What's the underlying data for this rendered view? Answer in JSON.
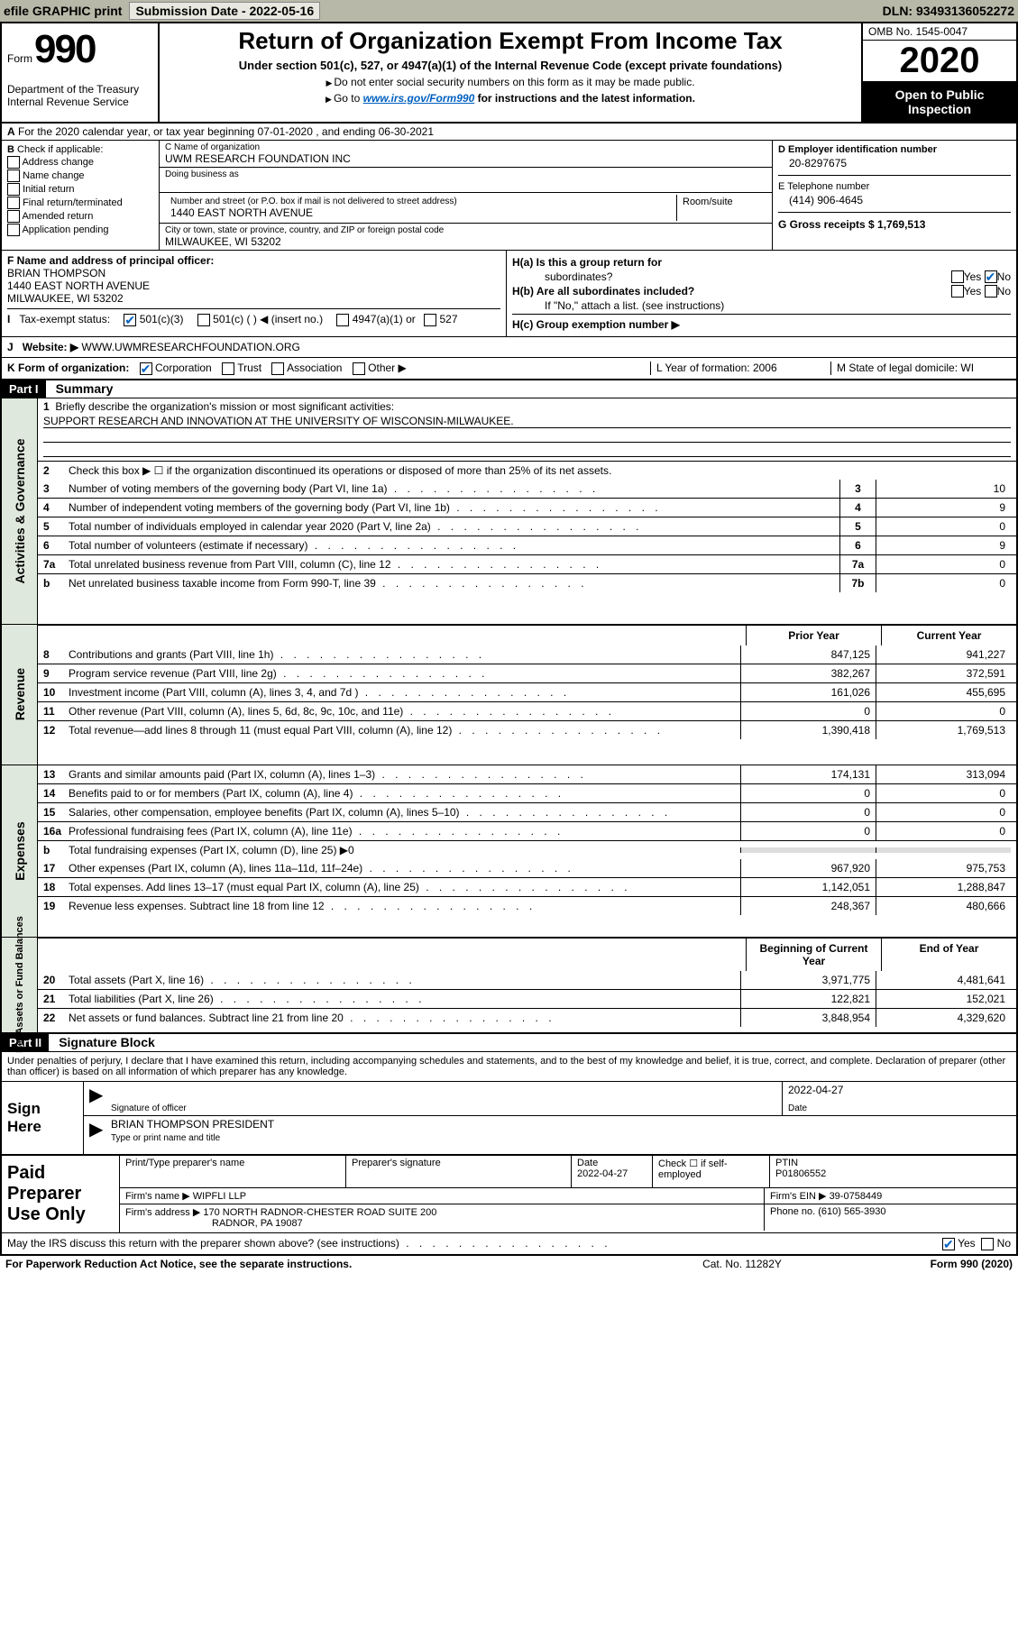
{
  "topbar": {
    "efile": "efile GRAPHIC print",
    "submission_label": "Submission Date - 2022-05-16",
    "dln": "DLN: 93493136052272"
  },
  "header": {
    "form_word": "Form",
    "form_num": "990",
    "dept": "Department of the Treasury",
    "irs": "Internal Revenue Service",
    "title": "Return of Organization Exempt From Income Tax",
    "subtitle": "Under section 501(c), 527, or 4947(a)(1) of the Internal Revenue Code (except private foundations)",
    "note1": "Do not enter social security numbers on this form as it may be made public.",
    "note2_pre": "Go to ",
    "note2_link": "www.irs.gov/Form990",
    "note2_post": " for instructions and the latest information.",
    "omb": "OMB No. 1545-0047",
    "year": "2020",
    "inspect1": "Open to Public",
    "inspect2": "Inspection"
  },
  "row_a": "For the 2020 calendar year, or tax year beginning 07-01-2020    , and ending 06-30-2021",
  "section_b": {
    "label": "Check if applicable:",
    "opts": [
      "Address change",
      "Name change",
      "Initial return",
      "Final return/terminated",
      "Amended return",
      "Application pending"
    ]
  },
  "section_c": {
    "name_label": "C Name of organization",
    "name": "UWM RESEARCH FOUNDATION INC",
    "dba_label": "Doing business as",
    "dba": "",
    "street_label": "Number and street (or P.O. box if mail is not delivered to street address)",
    "room_label": "Room/suite",
    "street": "1440 EAST NORTH AVENUE",
    "city_label": "City or town, state or province, country, and ZIP or foreign postal code",
    "city": "MILWAUKEE, WI  53202"
  },
  "section_d": {
    "label": "D Employer identification number",
    "value": "20-8297675"
  },
  "section_e": {
    "label": "E Telephone number",
    "value": "(414) 906-4645"
  },
  "section_g": {
    "label": "G Gross receipts $ 1,769,513"
  },
  "section_f": {
    "label": "F  Name and address of principal officer:",
    "name": "BRIAN THOMPSON",
    "addr1": "1440 EAST NORTH AVENUE",
    "addr2": "MILWAUKEE, WI  53202"
  },
  "section_h": {
    "a": "H(a)  Is this a group return for",
    "a2": "subordinates?",
    "b": "H(b)  Are all subordinates included?",
    "b2": "If \"No,\" attach a list. (see instructions)",
    "c": "H(c)  Group exemption number ▶",
    "yes": "Yes",
    "no": "No"
  },
  "row_i": {
    "label": "Tax-exempt status:",
    "o1": "501(c)(3)",
    "o2": "501(c) (  ) ◀ (insert no.)",
    "o3": "4947(a)(1) or",
    "o4": "527"
  },
  "row_j": {
    "label": "Website: ▶",
    "value": "  WWW.UWMRESEARCHFOUNDATION.ORG"
  },
  "row_k": {
    "k1": "K Form of organization:",
    "corp": "Corporation",
    "trust": "Trust",
    "assoc": "Association",
    "other": "Other ▶",
    "l": "L Year of formation: 2006",
    "m": "M State of legal domicile: WI"
  },
  "part1": {
    "hdr": "Part I",
    "title": "Summary"
  },
  "gov": {
    "label": "Activities & Governance",
    "l1": "Briefly describe the organization's mission or most significant activities:",
    "mission": "SUPPORT RESEARCH AND INNOVATION AT THE UNIVERSITY OF WISCONSIN-MILWAUKEE.",
    "l2": "Check this box ▶ ☐  if the organization discontinued its operations or disposed of more than 25% of its net assets.",
    "lines": [
      {
        "n": "3",
        "t": "Number of voting members of the governing body (Part VI, line 1a)",
        "box": "3",
        "v": "10"
      },
      {
        "n": "4",
        "t": "Number of independent voting members of the governing body (Part VI, line 1b)",
        "box": "4",
        "v": "9"
      },
      {
        "n": "5",
        "t": "Total number of individuals employed in calendar year 2020 (Part V, line 2a)",
        "box": "5",
        "v": "0"
      },
      {
        "n": "6",
        "t": "Total number of volunteers (estimate if necessary)",
        "box": "6",
        "v": "9"
      },
      {
        "n": "7a",
        "t": "Total unrelated business revenue from Part VIII, column (C), line 12",
        "box": "7a",
        "v": "0"
      },
      {
        "n": "b",
        "t": "Net unrelated business taxable income from Form 990-T, line 39",
        "box": "7b",
        "v": "0"
      }
    ]
  },
  "col_hdrs": {
    "prior": "Prior Year",
    "current": "Current Year",
    "beg": "Beginning of Current Year",
    "end": "End of Year"
  },
  "rev": {
    "label": "Revenue",
    "lines": [
      {
        "n": "8",
        "t": "Contributions and grants (Part VIII, line 1h)",
        "p": "847,125",
        "c": "941,227"
      },
      {
        "n": "9",
        "t": "Program service revenue (Part VIII, line 2g)",
        "p": "382,267",
        "c": "372,591"
      },
      {
        "n": "10",
        "t": "Investment income (Part VIII, column (A), lines 3, 4, and 7d )",
        "p": "161,026",
        "c": "455,695"
      },
      {
        "n": "11",
        "t": "Other revenue (Part VIII, column (A), lines 5, 6d, 8c, 9c, 10c, and 11e)",
        "p": "0",
        "c": "0"
      },
      {
        "n": "12",
        "t": "Total revenue—add lines 8 through 11 (must equal Part VIII, column (A), line 12)",
        "p": "1,390,418",
        "c": "1,769,513"
      }
    ]
  },
  "exp": {
    "label": "Expenses",
    "lines": [
      {
        "n": "13",
        "t": "Grants and similar amounts paid (Part IX, column (A), lines 1–3)",
        "p": "174,131",
        "c": "313,094"
      },
      {
        "n": "14",
        "t": "Benefits paid to or for members (Part IX, column (A), line 4)",
        "p": "0",
        "c": "0"
      },
      {
        "n": "15",
        "t": "Salaries, other compensation, employee benefits (Part IX, column (A), lines 5–10)",
        "p": "0",
        "c": "0"
      },
      {
        "n": "16a",
        "t": "Professional fundraising fees (Part IX, column (A), line 11e)",
        "p": "0",
        "c": "0"
      }
    ],
    "l16b": "Total fundraising expenses (Part IX, column (D), line 25) ▶0",
    "lines2": [
      {
        "n": "17",
        "t": "Other expenses (Part IX, column (A), lines 11a–11d, 11f–24e)",
        "p": "967,920",
        "c": "975,753"
      },
      {
        "n": "18",
        "t": "Total expenses. Add lines 13–17 (must equal Part IX, column (A), line 25)",
        "p": "1,142,051",
        "c": "1,288,847"
      },
      {
        "n": "19",
        "t": "Revenue less expenses. Subtract line 18 from line 12",
        "p": "248,367",
        "c": "480,666"
      }
    ]
  },
  "net": {
    "label": "Net Assets or Fund Balances",
    "lines": [
      {
        "n": "20",
        "t": "Total assets (Part X, line 16)",
        "p": "3,971,775",
        "c": "4,481,641"
      },
      {
        "n": "21",
        "t": "Total liabilities (Part X, line 26)",
        "p": "122,821",
        "c": "152,021"
      },
      {
        "n": "22",
        "t": "Net assets or fund balances. Subtract line 21 from line 20",
        "p": "3,848,954",
        "c": "4,329,620"
      }
    ]
  },
  "part2": {
    "hdr": "Part II",
    "title": "Signature Block",
    "text": "Under penalties of perjury, I declare that I have examined this return, including accompanying schedules and statements, and to the best of my knowledge and belief, it is true, correct, and complete. Declaration of preparer (other than officer) is based on all information of which preparer has any knowledge."
  },
  "sign": {
    "here": "Sign Here",
    "sig_label": "Signature of officer",
    "date_label": "Date",
    "date": "2022-04-27",
    "name": "BRIAN THOMPSON  PRESIDENT",
    "name_label": "Type or print name and title"
  },
  "prep": {
    "label": "Paid Preparer Use Only",
    "print_label": "Print/Type preparer's name",
    "sig_label": "Preparer's signature",
    "date_label": "Date",
    "date": "2022-04-27",
    "check_label": "Check ☐ if self-employed",
    "ptin_label": "PTIN",
    "ptin": "P01806552",
    "firm_label": "Firm's name    ▶",
    "firm": "WIPFLI LLP",
    "ein_label": "Firm's EIN ▶",
    "ein": "39-0758449",
    "addr_label": "Firm's address ▶",
    "addr1": "170 NORTH RADNOR-CHESTER ROAD SUITE 200",
    "addr2": "RADNOR, PA  19087",
    "phone_label": "Phone no.",
    "phone": "(610) 565-3930"
  },
  "footer": {
    "discuss": "May the IRS discuss this return with the preparer shown above? (see instructions)",
    "yes": "Yes",
    "no": "No",
    "paperwork": "For Paperwork Reduction Act Notice, see the separate instructions.",
    "cat": "Cat. No. 11282Y",
    "form": "Form 990 (2020)"
  }
}
